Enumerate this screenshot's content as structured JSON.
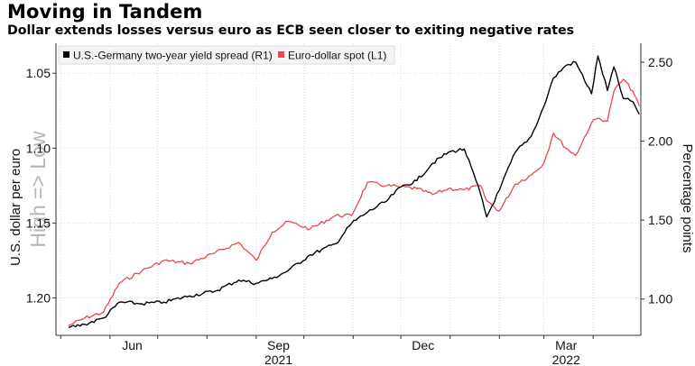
{
  "header": {
    "title": "Moving in Tandem",
    "subtitle": "Dollar extends losses versus euro as ECB seen closer to exiting negative rates"
  },
  "chart_data": {
    "type": "line",
    "title": "Moving in Tandem",
    "subtitle": "Dollar extends losses versus euro as ECB seen closer to exiting negative rates",
    "ylabel_left": "U.S. dollar per euro",
    "ylabel_right": "Percentage points",
    "left_axis_annotation": "High => Low",
    "left_axis_inverted": true,
    "ylim_left": [
      1.225,
      1.03
    ],
    "ylim_right": [
      0.77,
      2.62
    ],
    "yticks_left": [
      "1.05",
      "1.10",
      "1.15",
      "1.20"
    ],
    "yticks_right": [
      "2.50",
      "2.00",
      "1.50",
      "1.00"
    ],
    "xticks": [
      {
        "label": "Jun",
        "sub": ""
      },
      {
        "label": "Sep",
        "sub": "2021"
      },
      {
        "label": "Dec",
        "sub": ""
      },
      {
        "label": "Mar",
        "sub": "2022"
      }
    ],
    "x_months": [
      "2021-05",
      "2021-06",
      "2021-07",
      "2021-08",
      "2021-09",
      "2021-10",
      "2021-11",
      "2021-12",
      "2022-01",
      "2022-02",
      "2022-03",
      "2022-04"
    ],
    "grid": true,
    "legend_position": "top-left",
    "series": [
      {
        "name": "U.S.-Germany two-year yield spread (R1)",
        "axis": "right",
        "color": "#000000",
        "x": [
          "2021-05-06",
          "2021-05-16",
          "2021-05-28",
          "2021-06-07",
          "2021-06-21",
          "2021-07-05",
          "2021-07-21",
          "2021-08-06",
          "2021-08-21",
          "2021-09-01",
          "2021-09-11",
          "2021-09-21",
          "2021-10-05",
          "2021-10-21",
          "2021-10-31",
          "2021-11-10",
          "2021-11-22",
          "2021-12-01",
          "2021-12-11",
          "2021-12-21",
          "2021-12-31",
          "2022-01-10",
          "2022-01-20",
          "2022-01-24",
          "2022-02-01",
          "2022-02-11",
          "2022-02-21",
          "2022-03-01",
          "2022-03-07",
          "2022-03-15",
          "2022-03-21",
          "2022-03-31",
          "2022-04-04",
          "2022-04-10",
          "2022-04-14",
          "2022-04-20",
          "2022-04-26",
          "2022-04-30"
        ],
        "values": [
          0.82,
          0.84,
          0.88,
          0.98,
          0.97,
          0.98,
          1.02,
          1.05,
          1.12,
          1.1,
          1.13,
          1.18,
          1.28,
          1.35,
          1.48,
          1.55,
          1.62,
          1.71,
          1.75,
          1.86,
          1.93,
          1.95,
          1.67,
          1.52,
          1.69,
          1.93,
          2.03,
          2.22,
          2.4,
          2.48,
          2.5,
          2.3,
          2.54,
          2.32,
          2.47,
          2.27,
          2.25,
          2.17
        ]
      },
      {
        "name": "Euro-dollar spot (L1)",
        "axis": "left",
        "color": "#e8484f",
        "x": [
          "2021-05-06",
          "2021-05-16",
          "2021-05-28",
          "2021-06-07",
          "2021-06-21",
          "2021-07-05",
          "2021-07-21",
          "2021-08-06",
          "2021-08-21",
          "2021-09-01",
          "2021-09-11",
          "2021-09-21",
          "2021-10-05",
          "2021-10-21",
          "2021-10-31",
          "2021-11-10",
          "2021-11-22",
          "2021-12-01",
          "2021-12-11",
          "2021-12-21",
          "2021-12-31",
          "2022-01-10",
          "2022-01-20",
          "2022-01-24",
          "2022-02-01",
          "2022-02-11",
          "2022-02-21",
          "2022-03-01",
          "2022-03-07",
          "2022-03-15",
          "2022-03-21",
          "2022-03-31",
          "2022-04-04",
          "2022-04-10",
          "2022-04-14",
          "2022-04-20",
          "2022-04-26",
          "2022-04-30"
        ],
        "values": [
          1.2185,
          1.2135,
          1.2095,
          1.19,
          1.182,
          1.175,
          1.177,
          1.17,
          1.163,
          1.175,
          1.156,
          1.149,
          1.154,
          1.145,
          1.145,
          1.123,
          1.125,
          1.126,
          1.127,
          1.131,
          1.127,
          1.128,
          1.125,
          1.135,
          1.142,
          1.124,
          1.118,
          1.11,
          1.09,
          1.1,
          1.105,
          1.083,
          1.08,
          1.082,
          1.062,
          1.054,
          1.062,
          1.072
        ]
      }
    ]
  }
}
